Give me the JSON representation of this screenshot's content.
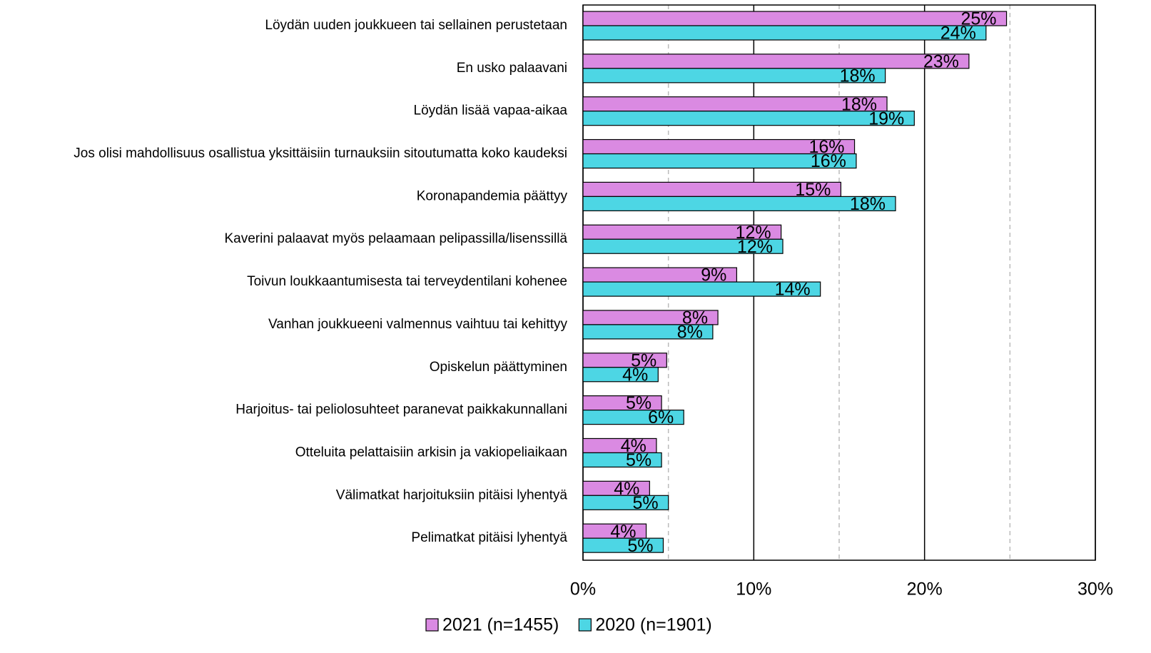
{
  "chart_data": {
    "type": "hbar",
    "categories": [
      "Löydän uuden joukkueen tai sellainen perustetaan",
      "En usko palaavani",
      "Löydän lisää vapaa-aikaa",
      "Jos olisi mahdollisuus osallistua yksittäisiin turnauksiin sitoutumatta koko kaudeksi",
      "Koronapandemia päättyy",
      "Kaverini palaavat myös pelaamaan pelipassilla/lisenssillä",
      "Toivun loukkaantumisesta tai terveydentilani kohenee",
      "Vanhan joukkueeni valmennus vaihtuu tai kehittyy",
      "Opiskelun päättyminen",
      "Harjoitus- tai peliolosuhteet paranevat paikkakunnallani",
      "Otteluita pelattaisiin arkisin ja vakiopeliaikaan",
      "Välimatkat harjoituksiin pitäisi lyhentyä",
      "Pelimatkat pitäisi lyhentyä"
    ],
    "series": [
      {
        "name": "2021 (n=1455)",
        "color": "#da8ae2",
        "values": [
          24.8,
          22.6,
          17.8,
          15.9,
          15.1,
          11.6,
          9.0,
          7.9,
          4.9,
          4.6,
          4.3,
          3.9,
          3.7
        ],
        "value_labels": [
          "25%",
          "23%",
          "18%",
          "16%",
          "15%",
          "12%",
          "9%",
          "8%",
          "5%",
          "5%",
          "4%",
          "4%",
          "4%"
        ]
      },
      {
        "name": "2020 (n=1901)",
        "color": "#4dd6e4",
        "values": [
          23.6,
          17.7,
          19.4,
          16.0,
          18.3,
          11.7,
          13.9,
          7.6,
          4.4,
          5.9,
          4.6,
          5.0,
          4.7
        ],
        "value_labels": [
          "24%",
          "18%",
          "19%",
          "16%",
          "18%",
          "12%",
          "14%",
          "8%",
          "4%",
          "6%",
          "5%",
          "5%",
          "5%"
        ]
      }
    ],
    "xlim": [
      0,
      30
    ],
    "xticks": [
      {
        "value": 0,
        "label": "0%"
      },
      {
        "value": 10,
        "label": "10%"
      },
      {
        "value": 20,
        "label": "20%"
      },
      {
        "value": 30,
        "label": "30%"
      }
    ],
    "minor_xticks": [
      5,
      15,
      25
    ],
    "grid": true,
    "legend": "bottom"
  }
}
